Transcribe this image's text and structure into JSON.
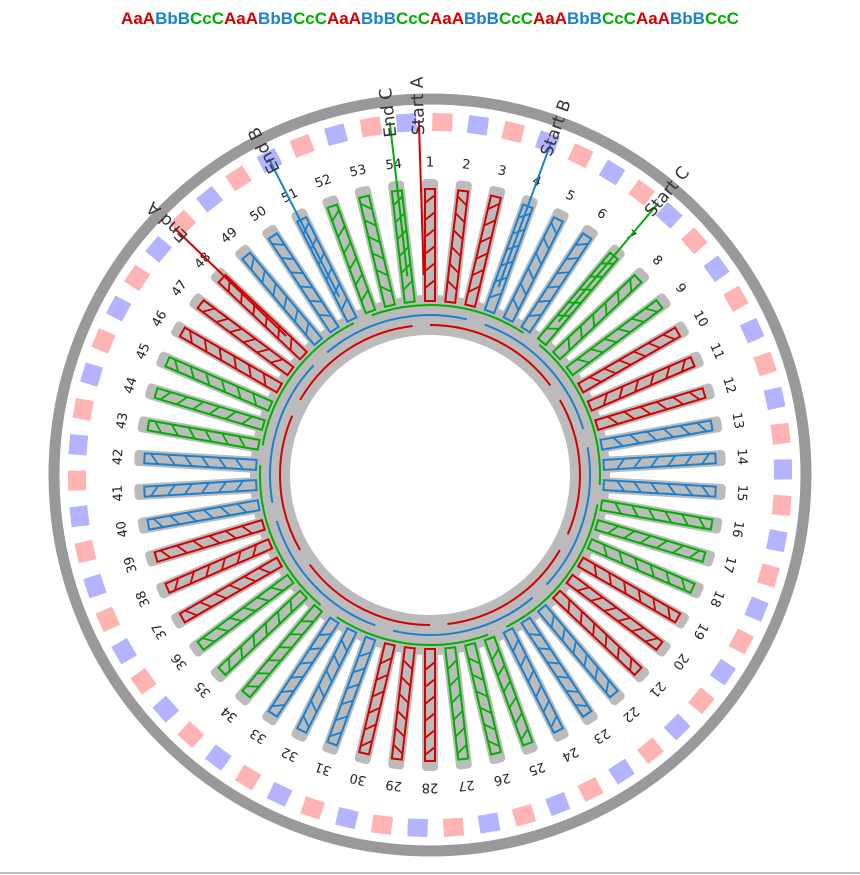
{
  "header": {
    "groups": [
      "AaA",
      "BbB",
      "CcC",
      "AaA",
      "BbB",
      "CcC",
      "AaA",
      "BbB",
      "CcC",
      "AaA",
      "BbB",
      "CcC",
      "AaA",
      "BbB",
      "CcC",
      "AaA",
      "BbB",
      "CcC"
    ]
  },
  "slots": [
    1,
    2,
    3,
    4,
    5,
    6,
    7,
    8,
    9,
    10,
    11,
    12,
    13,
    14,
    15,
    16,
    17,
    18,
    19,
    20,
    21,
    22,
    23,
    24,
    25,
    26,
    27,
    28,
    29,
    30,
    31,
    32,
    33,
    34,
    35,
    36,
    37,
    38,
    39,
    40,
    41,
    42,
    43,
    44,
    45,
    46,
    47,
    48,
    49,
    50,
    51,
    52,
    53,
    54
  ],
  "terminals": {
    "start_a": "Start A",
    "start_b": "Start B",
    "start_c": "Start C",
    "end_a": "End A",
    "end_b": "End B",
    "end_c": "End C"
  }
}
